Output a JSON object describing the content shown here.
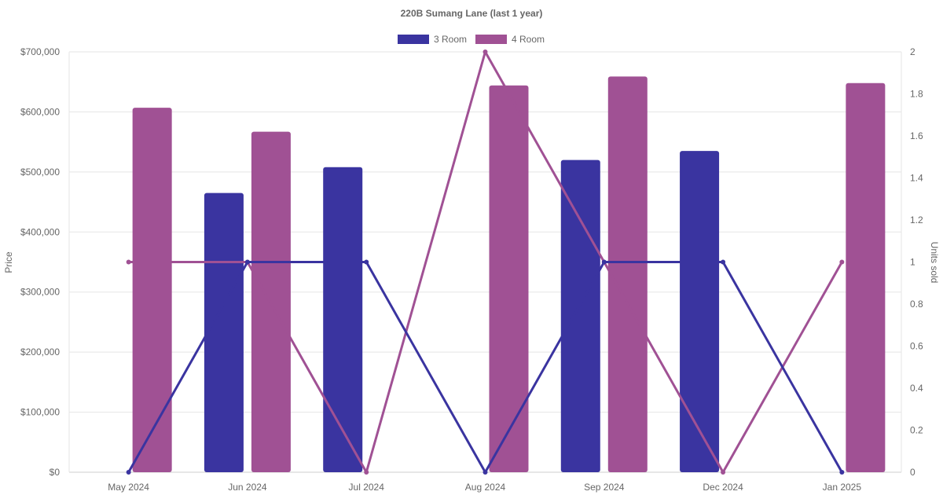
{
  "chart_data": {
    "type": "bar",
    "title": "220B Sumang Lane (last 1 year)",
    "categories": [
      "May 2024",
      "Jun 2024",
      "Jul 2024",
      "Aug 2024",
      "Sep 2024",
      "Dec 2024",
      "Jan 2025"
    ],
    "y_left": {
      "label": "Price",
      "min": 0,
      "max": 700000,
      "ticks": [
        0,
        100000,
        200000,
        300000,
        400000,
        500000,
        600000,
        700000
      ],
      "tick_labels": [
        "$0",
        "$100,000",
        "$200,000",
        "$300,000",
        "$400,000",
        "$500,000",
        "$600,000",
        "$700,000"
      ]
    },
    "y_right": {
      "label": "Units sold",
      "min": 0,
      "max": 2,
      "ticks": [
        0,
        0.2,
        0.4,
        0.6,
        0.8,
        1,
        1.2,
        1.4,
        1.6,
        1.8,
        2
      ],
      "tick_labels": [
        "0",
        "0.2",
        "0.4",
        "0.6",
        "0.8",
        "1",
        "1.2",
        "1.4",
        "1.6",
        "1.8",
        "2"
      ]
    },
    "series": [
      {
        "name": "3 Room",
        "color": "#3a34a0",
        "bar_values": [
          null,
          465000,
          508000,
          null,
          520000,
          535000,
          null
        ],
        "line_values": [
          0,
          1,
          1,
          0,
          1,
          1,
          0
        ]
      },
      {
        "name": "4 Room",
        "color": "#a05194",
        "bar_values": [
          607000,
          567000,
          null,
          644000,
          659000,
          null,
          648000
        ],
        "line_values": [
          1,
          1,
          0,
          2,
          1,
          0,
          1
        ]
      }
    ],
    "legend_position": "top",
    "grid": true
  }
}
